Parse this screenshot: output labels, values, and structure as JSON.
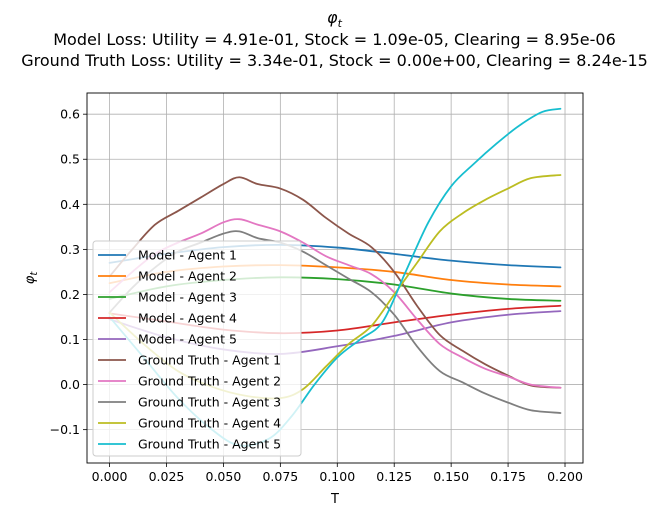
{
  "chart_data": {
    "type": "line",
    "title_lines": [
      "φ",
      "Model Loss: Utility = 4.91e-01, Stock = 1.09e-05, Clearing = 8.95e-06",
      "Ground Truth Loss: Utility = 3.34e-01, Stock = 0.00e+00, Clearing = 8.24e-15"
    ],
    "title_symbol": "φ",
    "title_subscript": "t",
    "xlabel": "T",
    "ylabel": "φ",
    "ylabel_subscript": "t",
    "xlim": [
      -0.0099,
      0.2079
    ],
    "ylim": [
      -0.174,
      0.647
    ],
    "xticks": [
      0.0,
      0.025,
      0.05,
      0.075,
      0.1,
      0.125,
      0.15,
      0.175,
      0.2
    ],
    "xtick_labels": [
      "0.000",
      "0.025",
      "0.050",
      "0.075",
      "0.100",
      "0.125",
      "0.150",
      "0.175",
      "0.200"
    ],
    "yticks": [
      -0.1,
      0.0,
      0.1,
      0.2,
      0.3,
      0.4,
      0.5,
      0.6
    ],
    "ytick_labels": [
      "−0.1",
      "0.0",
      "0.1",
      "0.2",
      "0.3",
      "0.4",
      "0.5",
      "0.6"
    ],
    "grid": true,
    "legend_position": "lower-left",
    "series": [
      {
        "name": "Model - Agent 1",
        "color": "#1f77b4",
        "x": [
          0.0,
          0.025,
          0.05,
          0.075,
          0.1,
          0.125,
          0.15,
          0.175,
          0.198
        ],
        "y": [
          0.27,
          0.29,
          0.305,
          0.31,
          0.304,
          0.29,
          0.275,
          0.265,
          0.26
        ]
      },
      {
        "name": "Model - Agent 2",
        "color": "#ff7f0e",
        "x": [
          0.0,
          0.025,
          0.05,
          0.075,
          0.1,
          0.125,
          0.15,
          0.175,
          0.198
        ],
        "y": [
          0.225,
          0.25,
          0.262,
          0.265,
          0.26,
          0.25,
          0.232,
          0.222,
          0.218
        ]
      },
      {
        "name": "Model - Agent 3",
        "color": "#2ca02c",
        "x": [
          0.0,
          0.025,
          0.05,
          0.075,
          0.1,
          0.125,
          0.15,
          0.175,
          0.198
        ],
        "y": [
          0.19,
          0.218,
          0.232,
          0.238,
          0.234,
          0.222,
          0.202,
          0.19,
          0.186
        ]
      },
      {
        "name": "Model - Agent 4",
        "color": "#d62728",
        "x": [
          0.0,
          0.025,
          0.05,
          0.075,
          0.1,
          0.125,
          0.15,
          0.175,
          0.198
        ],
        "y": [
          0.158,
          0.14,
          0.122,
          0.114,
          0.12,
          0.138,
          0.155,
          0.168,
          0.175
        ]
      },
      {
        "name": "Model - Agent 5",
        "color": "#9467bd",
        "x": [
          0.0,
          0.025,
          0.05,
          0.075,
          0.1,
          0.125,
          0.15,
          0.175,
          0.198
        ],
        "y": [
          0.145,
          0.105,
          0.078,
          0.068,
          0.085,
          0.108,
          0.138,
          0.155,
          0.163
        ]
      },
      {
        "name": "Ground Truth - Agent 1",
        "color": "#8c564b",
        "x": [
          0.0,
          0.01,
          0.02,
          0.03,
          0.04,
          0.05,
          0.057,
          0.065,
          0.075,
          0.085,
          0.095,
          0.105,
          0.115,
          0.125,
          0.135,
          0.145,
          0.155,
          0.165,
          0.175,
          0.185,
          0.198
        ],
        "y": [
          0.24,
          0.3,
          0.355,
          0.385,
          0.415,
          0.445,
          0.46,
          0.445,
          0.435,
          0.41,
          0.37,
          0.335,
          0.305,
          0.25,
          0.175,
          0.11,
          0.075,
          0.045,
          0.02,
          -0.002,
          -0.007
        ]
      },
      {
        "name": "Ground Truth - Agent 2",
        "color": "#e377c2",
        "x": [
          0.0,
          0.01,
          0.02,
          0.03,
          0.04,
          0.05,
          0.057,
          0.065,
          0.075,
          0.085,
          0.095,
          0.105,
          0.115,
          0.125,
          0.135,
          0.145,
          0.155,
          0.165,
          0.175,
          0.185,
          0.198
        ],
        "y": [
          0.205,
          0.25,
          0.29,
          0.315,
          0.335,
          0.36,
          0.367,
          0.355,
          0.34,
          0.315,
          0.285,
          0.265,
          0.245,
          0.205,
          0.145,
          0.09,
          0.06,
          0.035,
          0.018,
          0.0,
          -0.007
        ]
      },
      {
        "name": "Ground Truth - Agent 3",
        "color": "#7f7f7f",
        "x": [
          0.0,
          0.01,
          0.02,
          0.03,
          0.04,
          0.05,
          0.057,
          0.065,
          0.075,
          0.085,
          0.095,
          0.105,
          0.115,
          0.125,
          0.135,
          0.145,
          0.155,
          0.165,
          0.175,
          0.185,
          0.198
        ],
        "y": [
          0.16,
          0.215,
          0.26,
          0.295,
          0.315,
          0.335,
          0.34,
          0.325,
          0.315,
          0.295,
          0.265,
          0.235,
          0.205,
          0.155,
          0.085,
          0.03,
          0.005,
          -0.02,
          -0.04,
          -0.057,
          -0.063
        ]
      },
      {
        "name": "Ground Truth - Agent 4",
        "color": "#bcbd22",
        "x": [
          0.0,
          0.015,
          0.03,
          0.045,
          0.06,
          0.075,
          0.085,
          0.095,
          0.105,
          0.115,
          0.125,
          0.135,
          0.145,
          0.155,
          0.165,
          0.175,
          0.185,
          0.198
        ],
        "y": [
          0.16,
          0.09,
          0.03,
          -0.005,
          -0.025,
          -0.03,
          -0.01,
          0.04,
          0.09,
          0.13,
          0.2,
          0.27,
          0.34,
          0.38,
          0.41,
          0.435,
          0.458,
          0.465
        ]
      },
      {
        "name": "Ground Truth - Agent 5",
        "color": "#17becf",
        "x": [
          0.0,
          0.015,
          0.03,
          0.045,
          0.057,
          0.07,
          0.08,
          0.09,
          0.1,
          0.11,
          0.12,
          0.13,
          0.14,
          0.15,
          0.16,
          0.17,
          0.18,
          0.19,
          0.198
        ],
        "y": [
          0.15,
          0.06,
          -0.03,
          -0.1,
          -0.135,
          -0.12,
          -0.07,
          0.0,
          0.06,
          0.1,
          0.14,
          0.25,
          0.36,
          0.44,
          0.49,
          0.535,
          0.575,
          0.605,
          0.612
        ]
      }
    ]
  }
}
